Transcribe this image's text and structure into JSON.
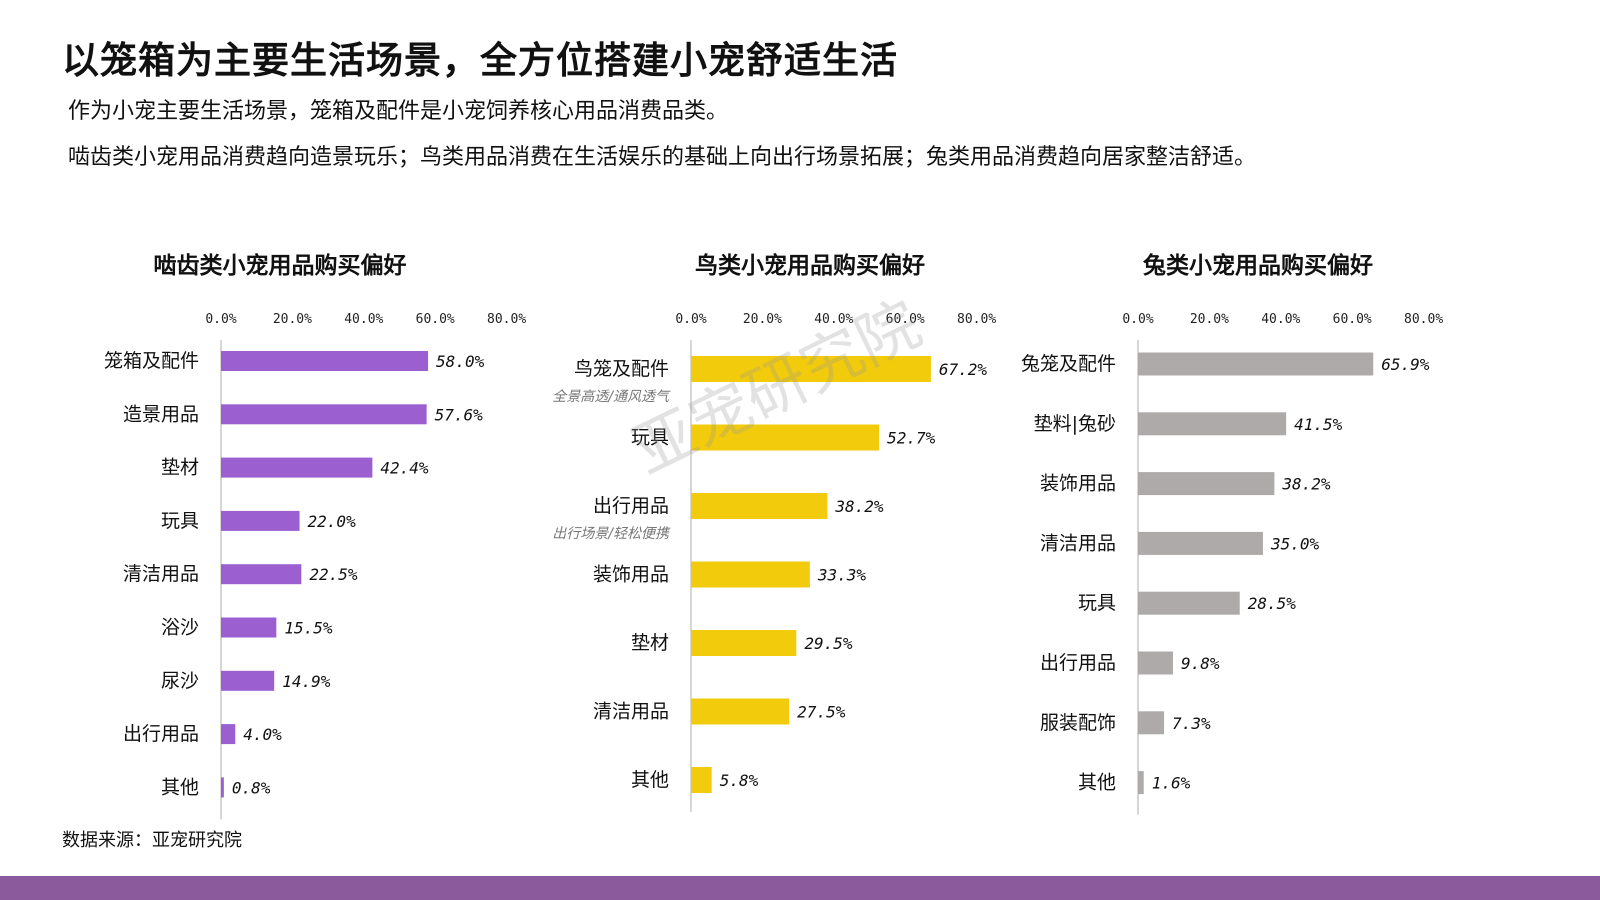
{
  "header": {
    "title": "以笼箱为主要生活场景，全方位搭建小宠舒适生活",
    "para1": "作为小宠主要生活场景，笼箱及配件是小宠饲养核心用品消费品类。",
    "para2": "啮齿类小宠用品消费趋向造景玩乐；鸟类用品消费在生活娱乐的基础上向出行场景拓展；兔类用品消费趋向居家整洁舒适。"
  },
  "watermark": "亚宠研究院",
  "footer": {
    "source": "数据来源：亚宠研究院",
    "bar_color": "#8a5a9d"
  },
  "chart_data": [
    {
      "type": "bar",
      "orientation": "horizontal",
      "title": "啮齿类小宠用品购买偏好",
      "color": "#9b5fd0",
      "xlim": [
        0,
        80
      ],
      "ticks": [
        "0.0%",
        "20.0%",
        "40.0%",
        "60.0%",
        "80.0%"
      ],
      "categories": [
        "笼箱及配件",
        "造景用品",
        "垫材",
        "玩具",
        "清洁用品",
        "浴沙",
        "尿沙",
        "出行用品",
        "其他"
      ],
      "values": [
        58.0,
        57.6,
        42.4,
        22.0,
        22.5,
        15.5,
        14.9,
        4.0,
        0.8
      ],
      "value_labels": [
        "58.0%",
        "57.6%",
        "42.4%",
        "22.0%",
        "22.5%",
        "15.5%",
        "14.9%",
        "4.0%",
        "0.8%"
      ],
      "sublabels": [
        "",
        "",
        "",
        "",
        "",
        "",
        "",
        "",
        ""
      ]
    },
    {
      "type": "bar",
      "orientation": "horizontal",
      "title": "鸟类小宠用品购买偏好",
      "color": "#f2cc0c",
      "xlim": [
        0,
        80
      ],
      "ticks": [
        "0.0%",
        "20.0%",
        "40.0%",
        "60.0%",
        "80.0%"
      ],
      "categories": [
        "鸟笼及配件",
        "玩具",
        "出行用品",
        "装饰用品",
        "垫材",
        "清洁用品",
        "其他"
      ],
      "values": [
        67.2,
        52.7,
        38.2,
        33.3,
        29.5,
        27.5,
        5.8
      ],
      "value_labels": [
        "67.2%",
        "52.7%",
        "38.2%",
        "33.3%",
        "29.5%",
        "27.5%",
        "5.8%"
      ],
      "sublabels": [
        "全景高透/通风透气",
        "",
        "出行场景/轻松便携",
        "",
        "",
        "",
        ""
      ]
    },
    {
      "type": "bar",
      "orientation": "horizontal",
      "title": "兔类小宠用品购买偏好",
      "color": "#aeaaaa",
      "xlim": [
        0,
        80
      ],
      "ticks": [
        "0.0%",
        "20.0%",
        "40.0%",
        "60.0%",
        "80.0%"
      ],
      "categories": [
        "兔笼及配件",
        "垫料|兔砂",
        "装饰用品",
        "清洁用品",
        "玩具",
        "出行用品",
        "服装配饰",
        "其他"
      ],
      "values": [
        65.9,
        41.5,
        38.2,
        35.0,
        28.5,
        9.8,
        7.3,
        1.6
      ],
      "value_labels": [
        "65.9%",
        "41.5%",
        "38.2%",
        "35.0%",
        "28.5%",
        "9.8%",
        "7.3%",
        "1.6%"
      ],
      "sublabels": [
        "",
        "",
        "",
        "",
        "",
        "",
        "",
        ""
      ]
    }
  ]
}
